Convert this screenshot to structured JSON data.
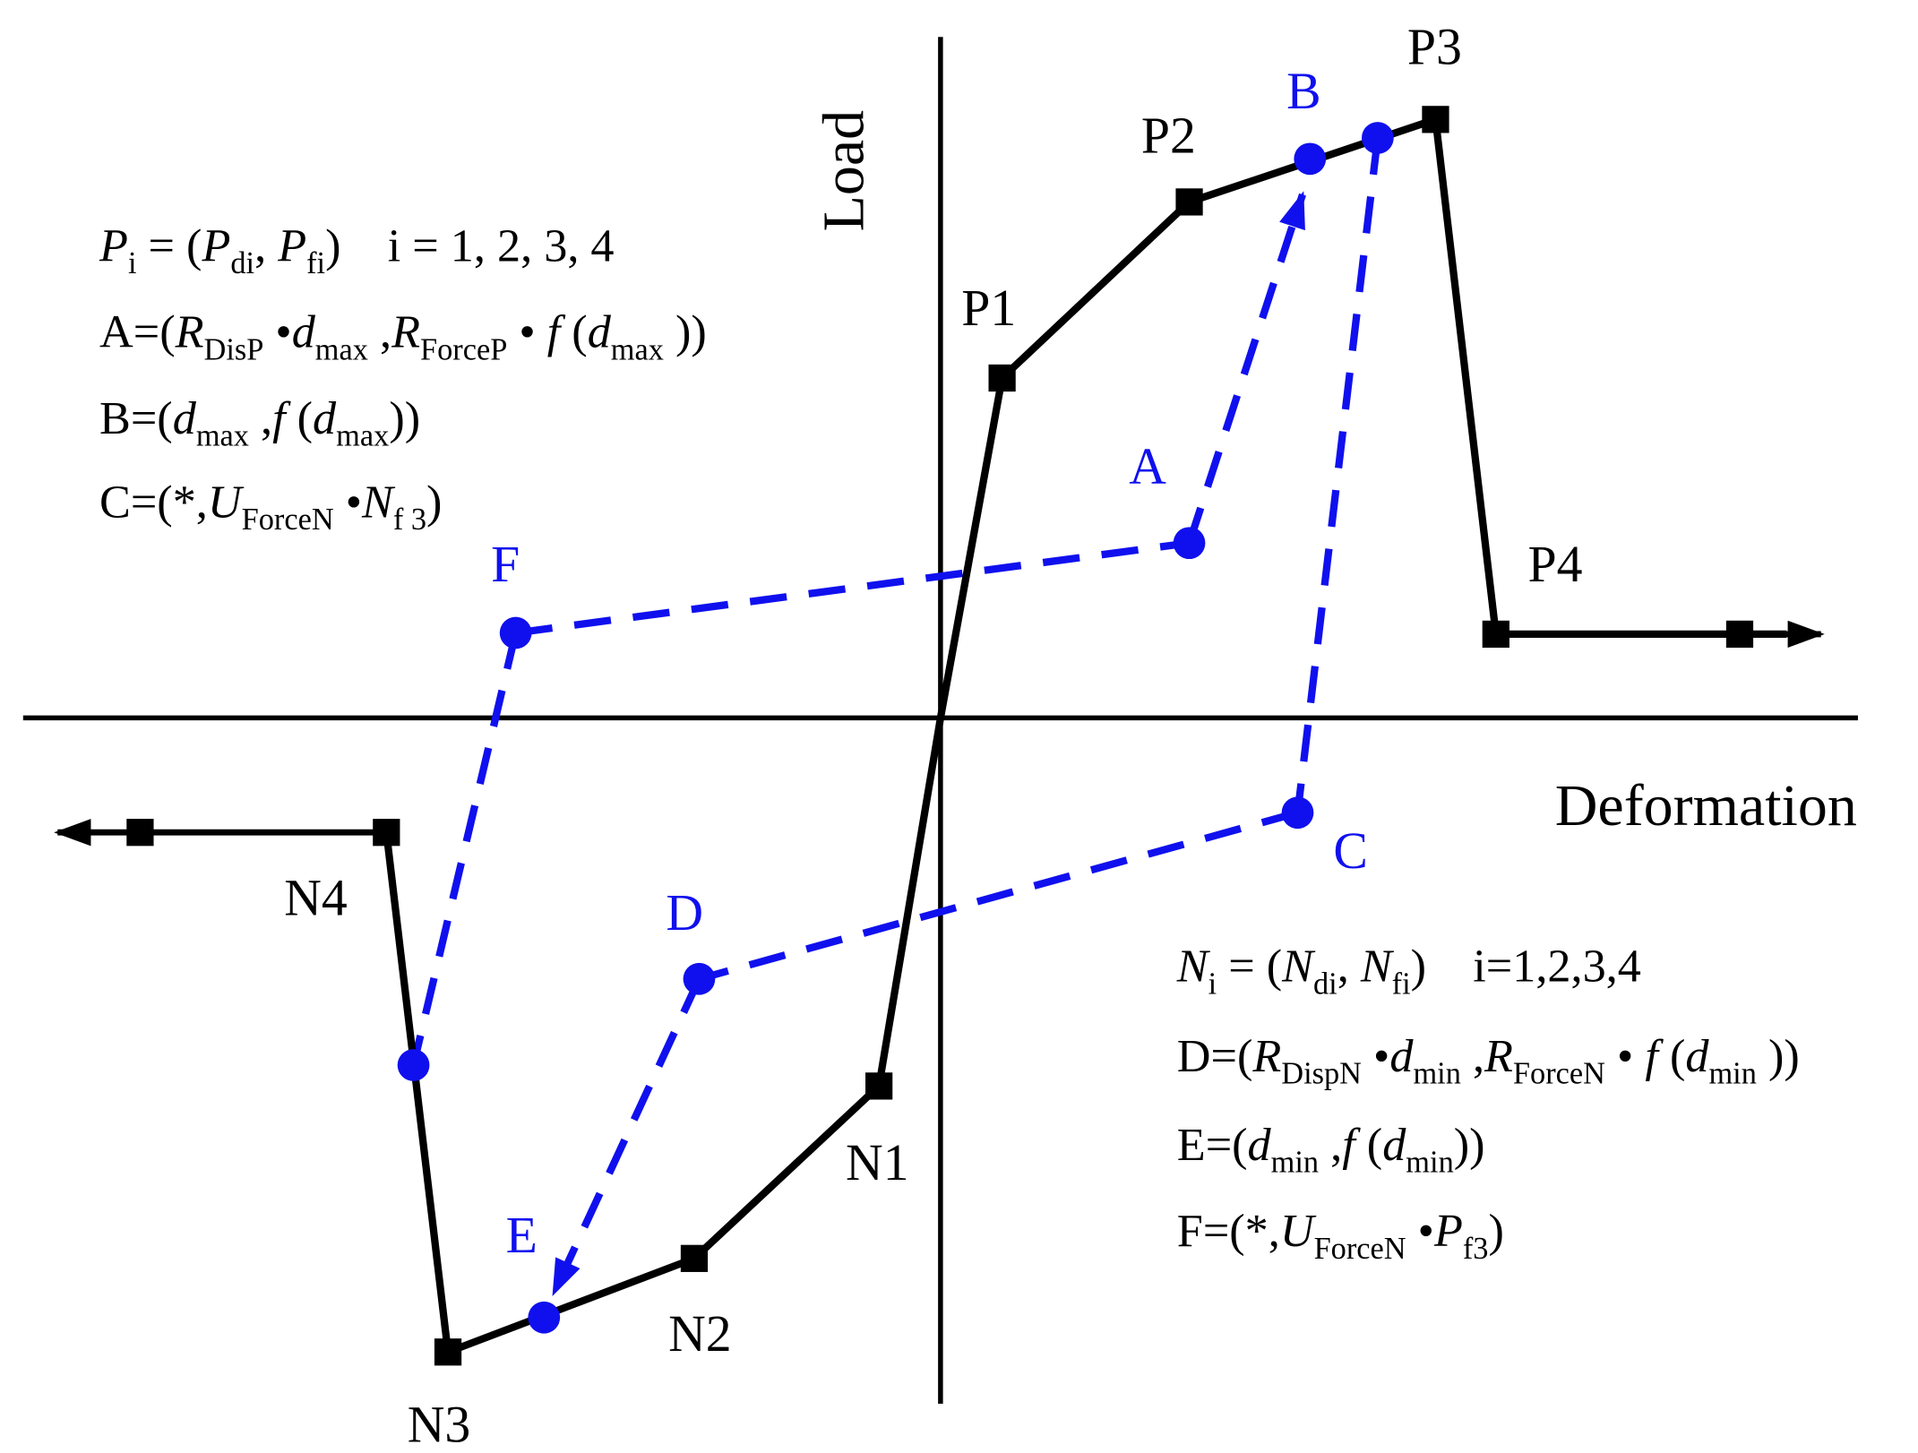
{
  "axes": {
    "y_label": "Load",
    "x_label": "Deformation"
  },
  "positive_points": [
    "P1",
    "P2",
    "P3",
    "P4"
  ],
  "negative_points": [
    "N1",
    "N2",
    "N3",
    "N4"
  ],
  "path_points": [
    "A",
    "B",
    "C",
    "D",
    "E",
    "F"
  ],
  "formulas": [
    {
      "runs": [
        {
          "t": "P",
          "i": true
        },
        {
          "t": "i",
          "sub": true
        },
        {
          "t": " = ("
        },
        {
          "t": "P",
          "i": true
        },
        {
          "t": "di",
          "sub": true
        },
        {
          "t": ", "
        },
        {
          "t": "P",
          "i": true
        },
        {
          "t": "fi",
          "sub": true
        },
        {
          "t": ")    i = 1, 2, 3, 4"
        }
      ]
    },
    {
      "runs": [
        {
          "t": "A=("
        },
        {
          "t": "R",
          "i": true
        },
        {
          "t": "DisP",
          "sub": true
        },
        {
          "t": " •"
        },
        {
          "t": "d",
          "i": true
        },
        {
          "t": "max",
          "sub": true
        },
        {
          "t": " ,"
        },
        {
          "t": "R",
          "i": true
        },
        {
          "t": "ForceP",
          "sub": true
        },
        {
          "t": " • "
        },
        {
          "t": "f",
          "i": true
        },
        {
          "t": " ("
        },
        {
          "t": "d",
          "i": true
        },
        {
          "t": "max",
          "sub": true
        },
        {
          "t": " ))"
        }
      ]
    },
    {
      "runs": [
        {
          "t": "B=("
        },
        {
          "t": "d",
          "i": true
        },
        {
          "t": "max",
          "sub": true
        },
        {
          "t": " ,"
        },
        {
          "t": "f",
          "i": true
        },
        {
          "t": " ("
        },
        {
          "t": "d",
          "i": true
        },
        {
          "t": "max",
          "sub": true
        },
        {
          "t": "))"
        }
      ]
    },
    {
      "runs": [
        {
          "t": "C=(*,"
        },
        {
          "t": "U",
          "i": true
        },
        {
          "t": "ForceN",
          "sub": true
        },
        {
          "t": " •"
        },
        {
          "t": "N",
          "i": true
        },
        {
          "t": "f 3",
          "sub": true
        },
        {
          "t": ")"
        }
      ]
    },
    {
      "runs": [
        {
          "t": "N",
          "i": true
        },
        {
          "t": "i",
          "sub": true
        },
        {
          "t": " = ("
        },
        {
          "t": "N",
          "i": true
        },
        {
          "t": "di",
          "sub": true
        },
        {
          "t": ", "
        },
        {
          "t": "N",
          "i": true
        },
        {
          "t": "fi",
          "sub": true
        },
        {
          "t": ")    i=1,2,3,4"
        }
      ]
    },
    {
      "runs": [
        {
          "t": "D=("
        },
        {
          "t": "R",
          "i": true
        },
        {
          "t": "DispN",
          "sub": true
        },
        {
          "t": " •"
        },
        {
          "t": "d",
          "i": true
        },
        {
          "t": "min",
          "sub": true
        },
        {
          "t": " ,"
        },
        {
          "t": "R",
          "i": true
        },
        {
          "t": "ForceN",
          "sub": true
        },
        {
          "t": " • "
        },
        {
          "t": "f",
          "i": true
        },
        {
          "t": " ("
        },
        {
          "t": "d",
          "i": true
        },
        {
          "t": "min",
          "sub": true
        },
        {
          "t": " ))"
        }
      ]
    },
    {
      "runs": [
        {
          "t": "E=("
        },
        {
          "t": "d",
          "i": true
        },
        {
          "t": "min",
          "sub": true
        },
        {
          "t": " ,"
        },
        {
          "t": "f",
          "i": true
        },
        {
          "t": " ("
        },
        {
          "t": "d",
          "i": true
        },
        {
          "t": "min",
          "sub": true
        },
        {
          "t": "))"
        }
      ]
    },
    {
      "runs": [
        {
          "t": "F=(*,"
        },
        {
          "t": "U",
          "i": true
        },
        {
          "t": "ForceN",
          "sub": true
        },
        {
          "t": " •"
        },
        {
          "t": "P",
          "i": true
        },
        {
          "t": "f3",
          "sub": true
        },
        {
          "t": ")"
        }
      ]
    }
  ]
}
